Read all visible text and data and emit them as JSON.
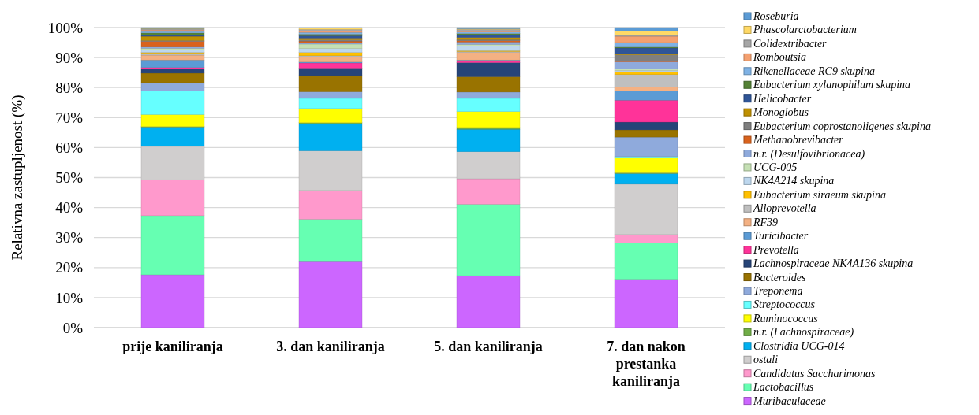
{
  "chart_data": {
    "type": "bar",
    "stacked": true,
    "ylabel": "Relativna zastupljenost (%)",
    "categories": [
      "prije kaniliranja",
      "3. dan kaniliranja",
      "5. dan kaniliranja",
      "7. dan nakon prestanka kaniliranja"
    ],
    "ylim": [
      0,
      100
    ],
    "yticks": [
      {
        "value": 0,
        "label": "0%"
      },
      {
        "value": 10,
        "label": "10%"
      },
      {
        "value": 20,
        "label": "20%"
      },
      {
        "value": 30,
        "label": "30%"
      },
      {
        "value": 40,
        "label": "40%"
      },
      {
        "value": 50,
        "label": "50%"
      },
      {
        "value": 60,
        "label": "60%"
      },
      {
        "value": 70,
        "label": "70%"
      },
      {
        "value": 80,
        "label": "80%"
      },
      {
        "value": 90,
        "label": "90%"
      },
      {
        "value": 100,
        "label": "100%"
      }
    ],
    "grid": "y",
    "legend": "right",
    "series": [
      {
        "name": "Muribaculaceae",
        "color": "#cc66ff",
        "values": [
          17.6,
          22.0,
          17.3,
          16.1
        ]
      },
      {
        "name": "Lactobacillus",
        "color": "#66ffb2",
        "values": [
          19.7,
          14.1,
          23.8,
          12.2
        ]
      },
      {
        "name": "Candidatus Saccharimonas",
        "color": "#ff99cc",
        "values": [
          12.0,
          9.6,
          8.5,
          2.7
        ]
      },
      {
        "name": "ostali",
        "color": "#d0cece",
        "values": [
          11.1,
          13.2,
          9.0,
          16.8
        ]
      },
      {
        "name": "Clostridia UCG-014",
        "color": "#00b0f0",
        "values": [
          6.4,
          8.9,
          7.5,
          3.5
        ]
      },
      {
        "name": "n.r. (Lachnospiraceae)",
        "color": "#70ad47",
        "values": [
          0.2,
          0.5,
          0.6,
          0.3
        ]
      },
      {
        "name": "Ruminococcus",
        "color": "#ffff00",
        "values": [
          4.0,
          4.7,
          5.3,
          4.9
        ]
      },
      {
        "name": "Streptococcus",
        "color": "#66ffff",
        "values": [
          7.8,
          3.4,
          4.4,
          0.5
        ]
      },
      {
        "name": "Treponema",
        "color": "#8faadc",
        "values": [
          2.8,
          2.2,
          2.1,
          6.5
        ]
      },
      {
        "name": "Bacteroides",
        "color": "#997300",
        "values": [
          3.2,
          5.4,
          5.1,
          2.4
        ]
      },
      {
        "name": "Lachnospiraceae NK4A136 skupina",
        "color": "#264478",
        "values": [
          1.4,
          2.5,
          4.7,
          2.6
        ]
      },
      {
        "name": "Prevotella",
        "color": "#ff3399",
        "values": [
          0.5,
          1.7,
          0.5,
          7.3
        ]
      },
      {
        "name": "Turicibacter",
        "color": "#5b9bd5",
        "values": [
          2.5,
          0.3,
          0.4,
          3.0
        ]
      },
      {
        "name": "RF39",
        "color": "#f4b183",
        "values": [
          1.6,
          1.8,
          2.5,
          1.3
        ]
      },
      {
        "name": "Alloprevotella",
        "color": "#bfbfbf",
        "values": [
          0.6,
          0.3,
          0.3,
          4.2
        ]
      },
      {
        "name": "Eubacterium siraeum skupina",
        "color": "#ffc000",
        "values": [
          0.3,
          1.1,
          0.3,
          1.0
        ]
      },
      {
        "name": "NK4A214 skupina",
        "color": "#bdd7ee",
        "values": [
          0.8,
          1.3,
          1.5,
          0.4
        ]
      },
      {
        "name": "UCG-005",
        "color": "#c5e0b4",
        "values": [
          0.6,
          1.5,
          0.6,
          0.6
        ]
      },
      {
        "name": "n.r. (Desulfovibrionacea)",
        "color": "#8faadc",
        "values": [
          0.4,
          0.4,
          0.8,
          2.3
        ]
      },
      {
        "name": "Methanobrevibacter",
        "color": "#d9621c",
        "values": [
          1.9,
          0.6,
          0.4,
          0.2
        ]
      },
      {
        "name": "Eubacterium coprostanoligenes skupina",
        "color": "#7f7f7f",
        "values": [
          0.3,
          0.4,
          0.4,
          2.1
        ]
      },
      {
        "name": "Monoglobus",
        "color": "#bf9000",
        "values": [
          1.4,
          0.6,
          0.7,
          0.3
        ]
      },
      {
        "name": "Helicobacter",
        "color": "#2f5597",
        "values": [
          0.4,
          0.8,
          0.8,
          2.0
        ]
      },
      {
        "name": "Eubacterium xylanophilum skupina",
        "color": "#548235",
        "values": [
          0.7,
          0.5,
          0.5,
          0.3
        ]
      },
      {
        "name": "Rikenellaceae RC9 skupina",
        "color": "#7fb2e5",
        "values": [
          0.5,
          0.6,
          0.5,
          1.5
        ]
      },
      {
        "name": "Romboutsia",
        "color": "#f4a070",
        "values": [
          0.5,
          0.5,
          0.4,
          2.1
        ]
      },
      {
        "name": "Colidextribacter",
        "color": "#a6a6a6",
        "values": [
          0.3,
          0.5,
          0.5,
          0.3
        ]
      },
      {
        "name": "Phascolarctobacterium",
        "color": "#ffd966",
        "values": [
          0.2,
          0.4,
          0.2,
          1.4
        ]
      },
      {
        "name": "Roseburia",
        "color": "#5b9bd5",
        "values": [
          0.3,
          0.2,
          0.4,
          1.2
        ]
      }
    ]
  }
}
